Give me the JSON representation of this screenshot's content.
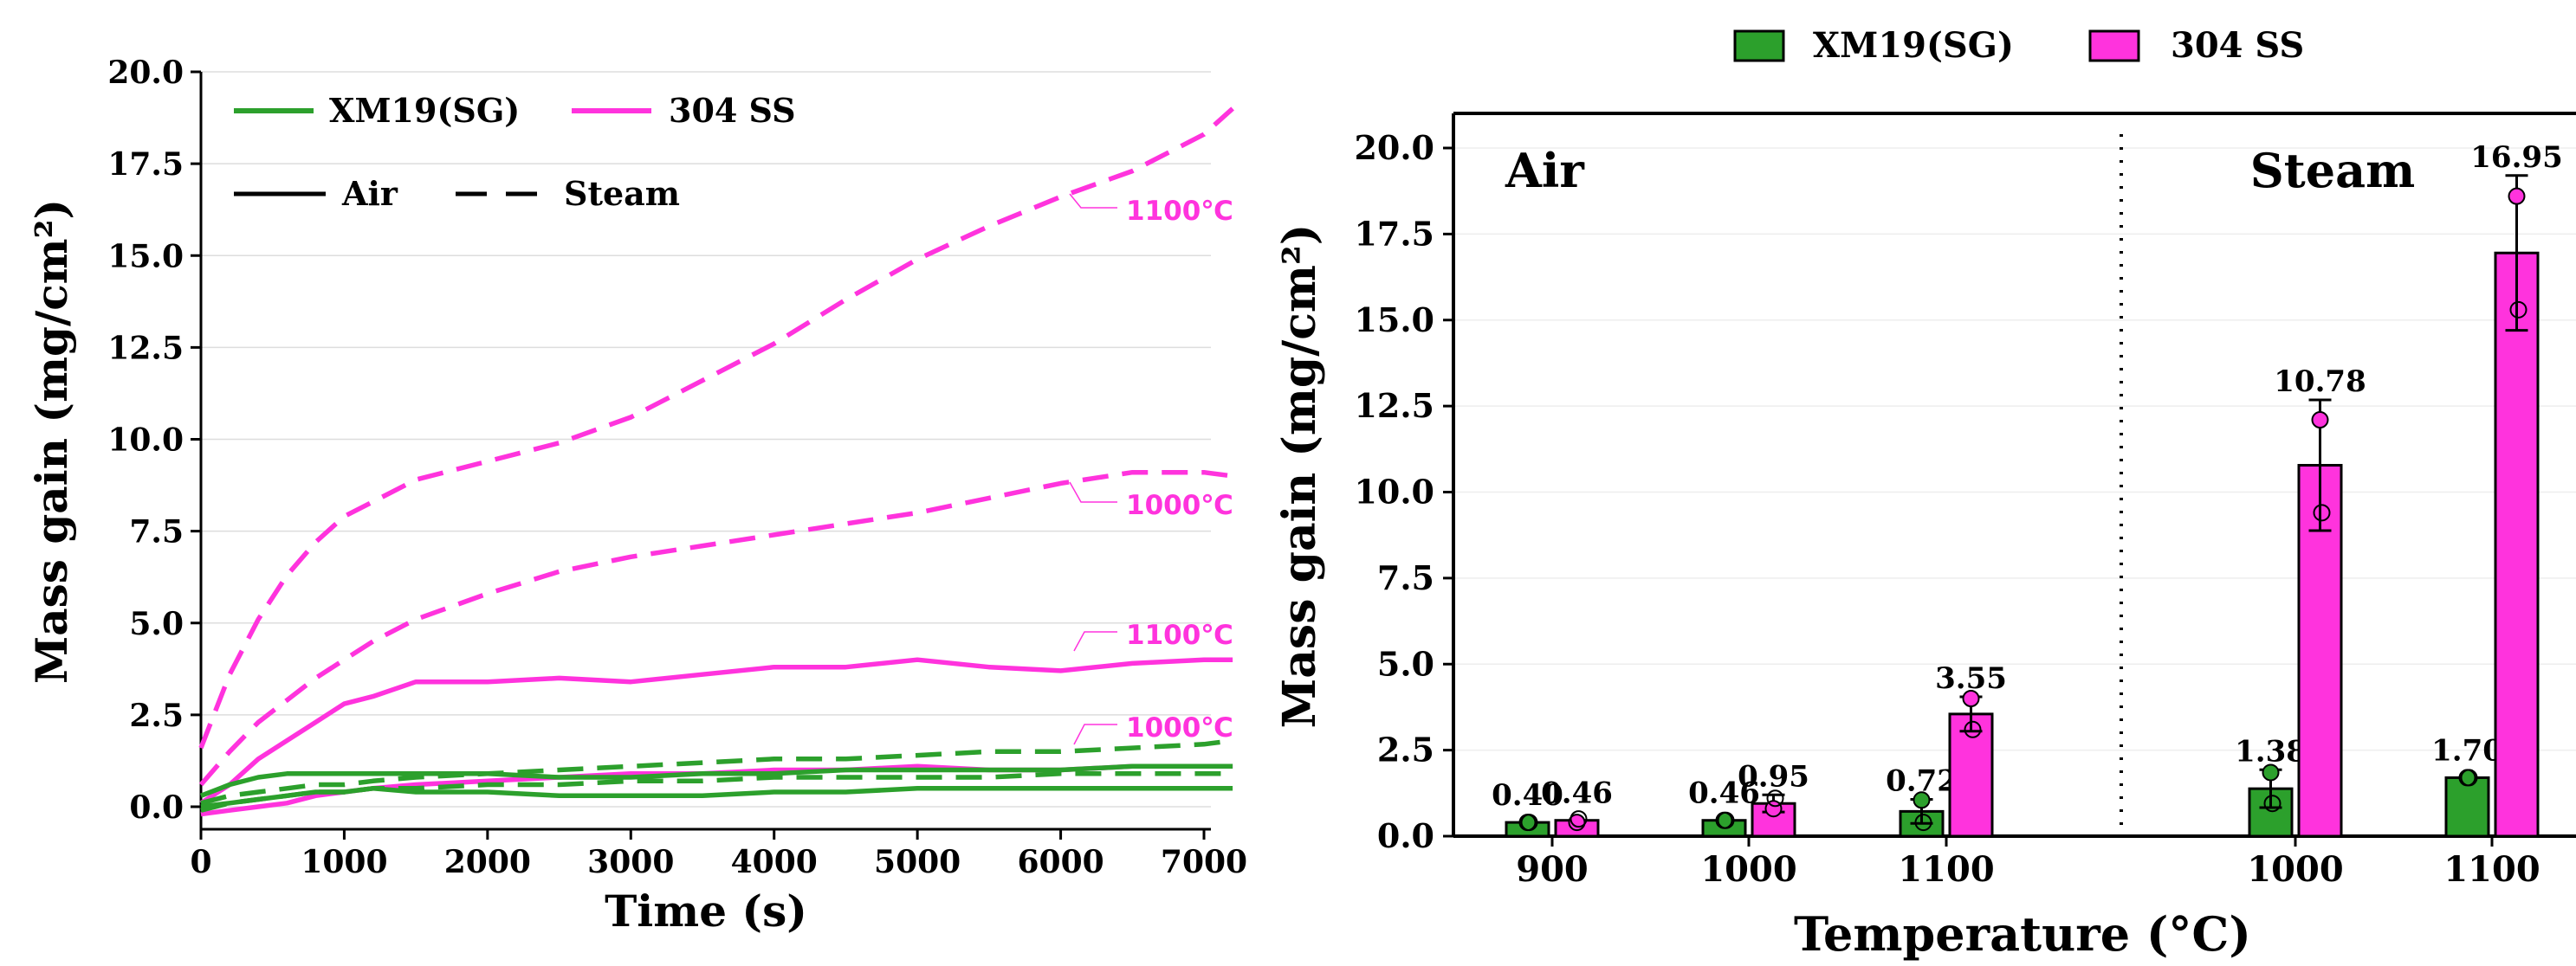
{
  "chart_data": [
    {
      "type": "line",
      "xlabel": "Time (s)",
      "ylabel": "Mass gain (mg/cm²)",
      "xlim": [
        0,
        7200
      ],
      "ylim": [
        0,
        20
      ],
      "xticks": [
        "0",
        "1000",
        "2000",
        "3000",
        "4000",
        "5000",
        "6000",
        "7000"
      ],
      "yticks": [
        "0.0",
        "2.5",
        "5.0",
        "7.5",
        "10.0",
        "12.5",
        "15.0",
        "17.5",
        "20.0"
      ],
      "grid": "horizontal",
      "legend": {
        "placement": "top-left",
        "materials": [
          {
            "name": "XM19(SG)",
            "color": "#2ca02c"
          },
          {
            "name": "304 SS",
            "color": "#ff33dd"
          }
        ],
        "atmospheres": [
          {
            "name": "Air",
            "dash": "solid"
          },
          {
            "name": "Steam",
            "dash": "dashed"
          }
        ]
      },
      "annotations": [
        "1100℃",
        "1000℃",
        "1100℃",
        "1000℃"
      ],
      "series": [
        {
          "material": "304 SS",
          "atmosphere": "Steam",
          "temp": "1100℃",
          "color": "#ff33dd",
          "dashed": true,
          "x": [
            0,
            200,
            400,
            600,
            800,
            1000,
            1200,
            1500,
            2000,
            2500,
            3000,
            3500,
            4000,
            4500,
            5000,
            5500,
            6000,
            6500,
            7000,
            7200
          ],
          "y": [
            1.6,
            3.6,
            5.1,
            6.3,
            7.2,
            7.9,
            8.3,
            8.9,
            9.4,
            9.9,
            10.6,
            11.6,
            12.6,
            13.8,
            14.9,
            15.8,
            16.6,
            17.3,
            18.3,
            19.0
          ]
        },
        {
          "material": "304 SS",
          "atmosphere": "Steam",
          "temp": "1000℃",
          "color": "#ff33dd",
          "dashed": true,
          "x": [
            0,
            200,
            400,
            600,
            800,
            1000,
            1200,
            1500,
            2000,
            2500,
            3000,
            3500,
            4000,
            4500,
            5000,
            5500,
            6000,
            6500,
            7000,
            7200
          ],
          "y": [
            0.6,
            1.5,
            2.3,
            2.9,
            3.5,
            4.0,
            4.5,
            5.1,
            5.8,
            6.4,
            6.8,
            7.1,
            7.4,
            7.7,
            8.0,
            8.4,
            8.8,
            9.1,
            9.1,
            9.0
          ]
        },
        {
          "material": "304 SS",
          "atmosphere": "Air",
          "temp": "1100℃",
          "color": "#ff33dd",
          "dashed": false,
          "x": [
            0,
            200,
            400,
            600,
            800,
            1000,
            1200,
            1500,
            2000,
            2500,
            3000,
            3500,
            4000,
            4500,
            5000,
            5500,
            6000,
            6500,
            7000,
            7200
          ],
          "y": [
            0.1,
            0.6,
            1.3,
            1.8,
            2.3,
            2.8,
            3.0,
            3.4,
            3.4,
            3.5,
            3.4,
            3.6,
            3.8,
            3.8,
            4.0,
            3.8,
            3.7,
            3.9,
            4.0,
            4.0
          ]
        },
        {
          "material": "304 SS",
          "atmosphere": "Air",
          "temp": "1000℃",
          "color": "#ff33dd",
          "dashed": false,
          "x": [
            0,
            200,
            400,
            600,
            800,
            1000,
            1200,
            1500,
            2000,
            2500,
            3000,
            3500,
            4000,
            4500,
            5000,
            5500,
            6000,
            6500,
            7000,
            7200
          ],
          "y": [
            -0.2,
            -0.1,
            0.0,
            0.1,
            0.3,
            0.4,
            0.5,
            0.6,
            0.7,
            0.8,
            0.9,
            0.9,
            1.0,
            1.0,
            1.1,
            1.0,
            1.0,
            1.1,
            1.1,
            1.1
          ]
        },
        {
          "material": "XM19(SG)",
          "atmosphere": "Steam",
          "temp": "1100℃",
          "color": "#2ca02c",
          "dashed": true,
          "x": [
            0,
            200,
            400,
            600,
            800,
            1000,
            1200,
            1500,
            2000,
            2500,
            3000,
            3500,
            4000,
            4500,
            5000,
            5500,
            6000,
            6500,
            7000,
            7200
          ],
          "y": [
            0.1,
            0.3,
            0.4,
            0.5,
            0.6,
            0.6,
            0.7,
            0.8,
            0.9,
            1.0,
            1.1,
            1.2,
            1.3,
            1.3,
            1.4,
            1.5,
            1.5,
            1.6,
            1.7,
            1.8
          ]
        },
        {
          "material": "XM19(SG)",
          "atmosphere": "Steam",
          "temp": "1000℃",
          "color": "#2ca02c",
          "dashed": true,
          "x": [
            0,
            200,
            400,
            600,
            800,
            1000,
            1200,
            1500,
            2000,
            2500,
            3000,
            3500,
            4000,
            4500,
            5000,
            5500,
            6000,
            6500,
            7000,
            7200
          ],
          "y": [
            -0.1,
            0.1,
            0.2,
            0.3,
            0.4,
            0.4,
            0.5,
            0.5,
            0.6,
            0.6,
            0.7,
            0.7,
            0.8,
            0.8,
            0.8,
            0.8,
            0.9,
            0.9,
            0.9,
            0.9
          ]
        },
        {
          "material": "XM19(SG)",
          "atmosphere": "Air",
          "temp": "1100℃",
          "color": "#2ca02c",
          "dashed": false,
          "x": [
            0,
            200,
            400,
            600,
            800,
            1000,
            1200,
            1500,
            2000,
            2500,
            3000,
            3500,
            4000,
            4500,
            5000,
            5500,
            6000,
            6500,
            7000,
            7200
          ],
          "y": [
            0.3,
            0.6,
            0.8,
            0.9,
            0.9,
            0.9,
            0.9,
            0.9,
            0.9,
            0.8,
            0.8,
            0.9,
            0.9,
            1.0,
            1.0,
            1.0,
            1.0,
            1.1,
            1.1,
            1.1
          ]
        },
        {
          "material": "XM19(SG)",
          "atmosphere": "Air",
          "temp": "1000℃",
          "color": "#2ca02c",
          "dashed": false,
          "x": [
            0,
            200,
            400,
            600,
            800,
            1000,
            1200,
            1500,
            2000,
            2500,
            3000,
            3500,
            4000,
            4500,
            5000,
            5500,
            6000,
            6500,
            7000,
            7200
          ],
          "y": [
            0.0,
            0.1,
            0.2,
            0.3,
            0.4,
            0.4,
            0.5,
            0.4,
            0.4,
            0.3,
            0.3,
            0.3,
            0.4,
            0.4,
            0.5,
            0.5,
            0.5,
            0.5,
            0.5,
            0.5
          ]
        }
      ]
    },
    {
      "type": "bar",
      "xlabel": "Temperature (°C)",
      "ylabel": "Mass gain (mg/cm²)",
      "ylim": [
        0,
        21
      ],
      "yticks": [
        "0.0",
        "2.5",
        "5.0",
        "7.5",
        "10.0",
        "12.5",
        "15.0",
        "17.5",
        "20.0"
      ],
      "legend": {
        "placement": "top-center-outside",
        "entries": [
          {
            "name": "XM19(SG)",
            "color": "#2ca02c"
          },
          {
            "name": "304 SS",
            "color": "#ff33dd"
          }
        ]
      },
      "panels": [
        {
          "label": "Air",
          "categories": [
            "900",
            "1000",
            "1100"
          ]
        },
        {
          "label": "Steam",
          "categories": [
            "1000",
            "1100"
          ]
        }
      ],
      "series": [
        {
          "name": "XM19(SG)",
          "color": "#2ca02c",
          "values": [
            0.4,
            0.46,
            0.72,
            1.38,
            1.7
          ],
          "labels": [
            "0.40",
            "0.46",
            "0.72",
            "1.38",
            "1.70"
          ],
          "errors": [
            0.0,
            0.0,
            0.35,
            0.55,
            0.0
          ],
          "points": [
            [
              0.4,
              0.4
            ],
            [
              0.46,
              0.46
            ],
            [
              1.05,
              0.4
            ],
            [
              1.85,
              0.95
            ],
            [
              1.7,
              1.7
            ]
          ]
        },
        {
          "name": "304 SS",
          "color": "#ff33dd",
          "values": [
            0.46,
            0.95,
            3.55,
            10.78,
            16.95
          ],
          "labels": [
            "0.46",
            "0.95",
            "3.55",
            "10.78",
            "16.95"
          ],
          "errors": [
            0.0,
            0.25,
            0.5,
            1.9,
            2.25
          ],
          "points": [
            [
              0.4,
              0.5
            ],
            [
              0.8,
              1.1
            ],
            [
              4.0,
              3.1
            ],
            [
              12.1,
              9.4
            ],
            [
              18.6,
              15.3
            ]
          ]
        }
      ]
    }
  ]
}
